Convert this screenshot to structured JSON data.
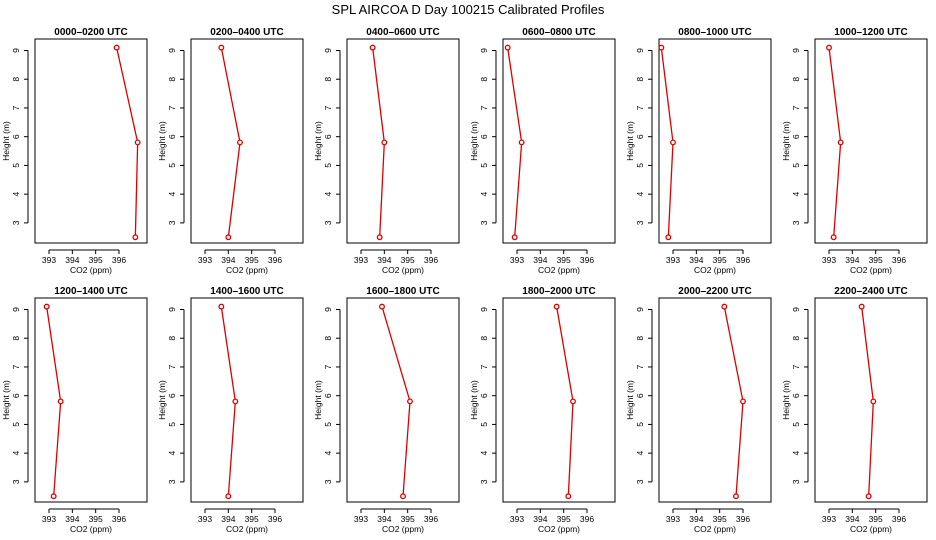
{
  "figure_title": "SPL AIRCOA D  Day 100215  Calibrated Profiles",
  "colors": {
    "series": "#dd0000",
    "axis": "#000000",
    "background": "#ffffff"
  },
  "chart_data": [
    {
      "type": "line",
      "title": "0000–0200 UTC",
      "xlabel": "CO2 (ppm)",
      "ylabel": "Height (m)",
      "xlim": [
        392.4,
        397.2
      ],
      "ylim": [
        2.3,
        9.4
      ],
      "xticks": [
        393,
        394,
        395,
        396
      ],
      "yticks": [
        3,
        4,
        5,
        6,
        7,
        8,
        9
      ],
      "grid": false,
      "series": [
        {
          "x": [
            395.9,
            396.8,
            396.7
          ],
          "y": [
            9.1,
            5.8,
            2.5
          ]
        }
      ]
    },
    {
      "type": "line",
      "title": "0200–0400 UTC",
      "xlabel": "CO2 (ppm)",
      "ylabel": "Height (m)",
      "xlim": [
        392.4,
        397.2
      ],
      "ylim": [
        2.3,
        9.4
      ],
      "xticks": [
        393,
        394,
        395,
        396
      ],
      "yticks": [
        3,
        4,
        5,
        6,
        7,
        8,
        9
      ],
      "grid": false,
      "series": [
        {
          "x": [
            393.7,
            394.5,
            394.0
          ],
          "y": [
            9.1,
            5.8,
            2.5
          ]
        }
      ]
    },
    {
      "type": "line",
      "title": "0400–0600 UTC",
      "xlabel": "CO2 (ppm)",
      "ylabel": "Height (m)",
      "xlim": [
        392.4,
        397.2
      ],
      "ylim": [
        2.3,
        9.4
      ],
      "xticks": [
        393,
        394,
        395,
        396
      ],
      "yticks": [
        3,
        4,
        5,
        6,
        7,
        8,
        9
      ],
      "grid": false,
      "series": [
        {
          "x": [
            393.5,
            394.0,
            393.8
          ],
          "y": [
            9.1,
            5.8,
            2.5
          ]
        }
      ]
    },
    {
      "type": "line",
      "title": "0600–0800 UTC",
      "xlabel": "CO2 (ppm)",
      "ylabel": "Height (m)",
      "xlim": [
        392.4,
        397.2
      ],
      "ylim": [
        2.3,
        9.4
      ],
      "xticks": [
        393,
        394,
        395,
        396
      ],
      "yticks": [
        3,
        4,
        5,
        6,
        7,
        8,
        9
      ],
      "grid": false,
      "series": [
        {
          "x": [
            392.6,
            393.2,
            392.9
          ],
          "y": [
            9.1,
            5.8,
            2.5
          ]
        }
      ]
    },
    {
      "type": "line",
      "title": "0800–1000 UTC",
      "xlabel": "CO2 (ppm)",
      "ylabel": "Height (m)",
      "xlim": [
        392.4,
        397.2
      ],
      "ylim": [
        2.3,
        9.4
      ],
      "xticks": [
        393,
        394,
        395,
        396
      ],
      "yticks": [
        3,
        4,
        5,
        6,
        7,
        8,
        9
      ],
      "grid": false,
      "series": [
        {
          "x": [
            392.5,
            393.0,
            392.8
          ],
          "y": [
            9.1,
            5.8,
            2.5
          ]
        }
      ]
    },
    {
      "type": "line",
      "title": "1000–1200 UTC",
      "xlabel": "CO2 (ppm)",
      "ylabel": "Height (m)",
      "xlim": [
        392.4,
        397.2
      ],
      "ylim": [
        2.3,
        9.4
      ],
      "xticks": [
        393,
        394,
        395,
        396
      ],
      "yticks": [
        3,
        4,
        5,
        6,
        7,
        8,
        9
      ],
      "grid": false,
      "series": [
        {
          "x": [
            393.0,
            393.5,
            393.2
          ],
          "y": [
            9.1,
            5.8,
            2.5
          ]
        }
      ]
    },
    {
      "type": "line",
      "title": "1200–1400 UTC",
      "xlabel": "CO2 (ppm)",
      "ylabel": "Height (m)",
      "xlim": [
        392.4,
        397.2
      ],
      "ylim": [
        2.3,
        9.4
      ],
      "xticks": [
        393,
        394,
        395,
        396
      ],
      "yticks": [
        3,
        4,
        5,
        6,
        7,
        8,
        9
      ],
      "grid": false,
      "series": [
        {
          "x": [
            392.9,
            393.5,
            393.2
          ],
          "y": [
            9.1,
            5.8,
            2.5
          ]
        }
      ]
    },
    {
      "type": "line",
      "title": "1400–1600 UTC",
      "xlabel": "CO2 (ppm)",
      "ylabel": "Height (m)",
      "xlim": [
        392.4,
        397.2
      ],
      "ylim": [
        2.3,
        9.4
      ],
      "xticks": [
        393,
        394,
        395,
        396
      ],
      "yticks": [
        3,
        4,
        5,
        6,
        7,
        8,
        9
      ],
      "grid": false,
      "series": [
        {
          "x": [
            393.7,
            394.3,
            394.0
          ],
          "y": [
            9.1,
            5.8,
            2.5
          ]
        }
      ]
    },
    {
      "type": "line",
      "title": "1600–1800 UTC",
      "xlabel": "CO2 (ppm)",
      "ylabel": "Height (m)",
      "xlim": [
        392.4,
        397.2
      ],
      "ylim": [
        2.3,
        9.4
      ],
      "xticks": [
        393,
        394,
        395,
        396
      ],
      "yticks": [
        3,
        4,
        5,
        6,
        7,
        8,
        9
      ],
      "grid": false,
      "series": [
        {
          "x": [
            393.9,
            395.1,
            394.8
          ],
          "y": [
            9.1,
            5.8,
            2.5
          ]
        }
      ]
    },
    {
      "type": "line",
      "title": "1800–2000 UTC",
      "xlabel": "CO2 (ppm)",
      "ylabel": "Height (m)",
      "xlim": [
        392.4,
        397.2
      ],
      "ylim": [
        2.3,
        9.4
      ],
      "xticks": [
        393,
        394,
        395,
        396
      ],
      "yticks": [
        3,
        4,
        5,
        6,
        7,
        8,
        9
      ],
      "grid": false,
      "series": [
        {
          "x": [
            394.7,
            395.4,
            395.2
          ],
          "y": [
            9.1,
            5.8,
            2.5
          ]
        }
      ]
    },
    {
      "type": "line",
      "title": "2000–2200 UTC",
      "xlabel": "CO2 (ppm)",
      "ylabel": "Height (m)",
      "xlim": [
        392.4,
        397.2
      ],
      "ylim": [
        2.3,
        9.4
      ],
      "xticks": [
        393,
        394,
        395,
        396
      ],
      "yticks": [
        3,
        4,
        5,
        6,
        7,
        8,
        9
      ],
      "grid": false,
      "series": [
        {
          "x": [
            395.2,
            396.0,
            395.7
          ],
          "y": [
            9.1,
            5.8,
            2.5
          ]
        }
      ]
    },
    {
      "type": "line",
      "title": "2200–2400 UTC",
      "xlabel": "CO2 (ppm)",
      "ylabel": "Height (m)",
      "xlim": [
        392.4,
        397.2
      ],
      "ylim": [
        2.3,
        9.4
      ],
      "xticks": [
        393,
        394,
        395,
        396
      ],
      "yticks": [
        3,
        4,
        5,
        6,
        7,
        8,
        9
      ],
      "grid": false,
      "series": [
        {
          "x": [
            394.4,
            394.9,
            394.7
          ],
          "y": [
            9.1,
            5.8,
            2.5
          ]
        }
      ]
    }
  ]
}
